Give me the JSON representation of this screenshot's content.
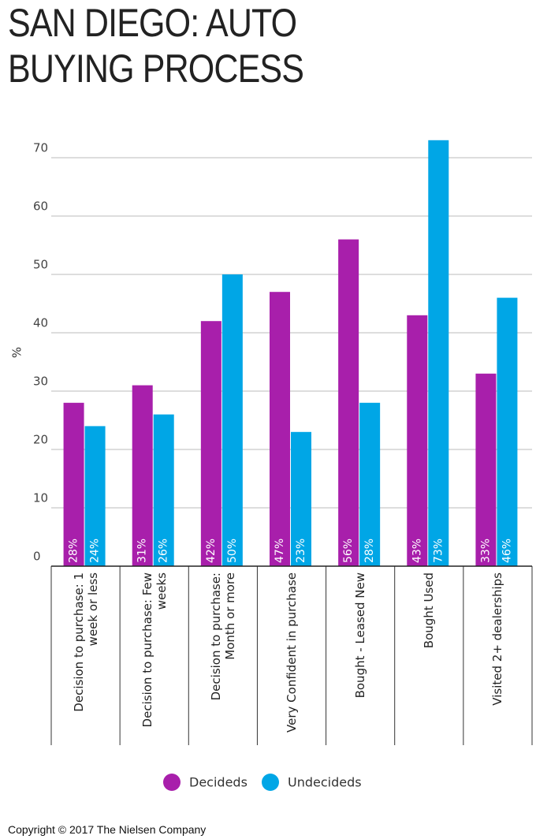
{
  "chart_data": {
    "type": "bar",
    "title": "SAN DIEGO: AUTO BUYING PROCESS",
    "y_label": "%",
    "categories": [
      "Decision to purchase: 1 week or less",
      "Decision to purchase: Few weeks",
      "Decision to purchase: Month or more",
      "Very Confident in purchase",
      "Bought - Leased New",
      "Bought Used",
      "Visited 2+ dealerships"
    ],
    "series": [
      {
        "name": "Decideds",
        "color": "#a81fab",
        "values": [
          28,
          31,
          42,
          47,
          56,
          43,
          33
        ],
        "value_labels": [
          "28%",
          "31%",
          "42%",
          "47%",
          "56%",
          "43%",
          "33%"
        ]
      },
      {
        "name": "Undecideds",
        "color": "#00a6e6",
        "values": [
          24,
          26,
          50,
          23,
          28,
          73,
          46
        ],
        "value_labels": [
          "24%",
          "26%",
          "50%",
          "23%",
          "28%",
          "73%",
          "46%"
        ]
      }
    ],
    "ylim": [
      0,
      75
    ],
    "yticks": [
      0,
      10,
      20,
      30,
      40,
      50,
      60,
      70
    ],
    "grid": true,
    "legend": "bottom"
  },
  "footer": "Copyright © 2017 The Nielsen Company"
}
